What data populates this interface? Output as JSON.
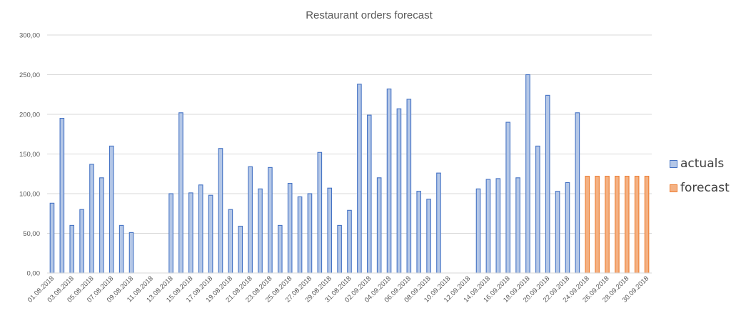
{
  "chart_data": {
    "type": "bar",
    "title": "Restaurant orders forecast",
    "xlabel": "",
    "ylabel": "",
    "ylim": [
      0,
      300
    ],
    "yticks": [
      "0,00",
      "50,00",
      "100,00",
      "150,00",
      "200,00",
      "250,00",
      "300,00"
    ],
    "grid": true,
    "legend_position": "right",
    "categories": [
      "01.08.2018",
      "02.08.2018",
      "03.08.2018",
      "04.08.2018",
      "05.08.2018",
      "06.08.2018",
      "07.08.2018",
      "08.08.2018",
      "09.08.2018",
      "10.08.2018",
      "11.08.2018",
      "12.08.2018",
      "13.08.2018",
      "14.08.2018",
      "15.08.2018",
      "16.08.2018",
      "17.08.2018",
      "18.08.2018",
      "19.08.2018",
      "20.08.2018",
      "21.08.2018",
      "22.08.2018",
      "23.08.2018",
      "24.08.2018",
      "25.08.2018",
      "26.08.2018",
      "27.08.2018",
      "28.08.2018",
      "29.08.2018",
      "30.08.2018",
      "31.08.2018",
      "01.09.2018",
      "02.09.2018",
      "03.09.2018",
      "04.09.2018",
      "05.09.2018",
      "06.09.2018",
      "07.09.2018",
      "08.09.2018",
      "09.09.2018",
      "10.09.2018",
      "11.09.2018",
      "12.09.2018",
      "13.09.2018",
      "14.09.2018",
      "15.09.2018",
      "16.09.2018",
      "17.09.2018",
      "18.09.2018",
      "19.09.2018",
      "20.09.2018",
      "21.09.2018",
      "22.09.2018",
      "23.09.2018",
      "24.09.2018",
      "25.09.2018",
      "26.09.2018",
      "27.09.2018",
      "28.09.2018",
      "29.09.2018",
      "30.09.2018"
    ],
    "tick_labels": [
      "01.08.2018",
      "03.08.2018",
      "05.08.2018",
      "07.08.2018",
      "09.08.2018",
      "11.08.2018",
      "13.08.2018",
      "15.08.2018",
      "17.08.2018",
      "19.08.2018",
      "21.08.2018",
      "23.08.2018",
      "25.08.2018",
      "27.08.2018",
      "29.08.2018",
      "31.08.2018",
      "02.09.2018",
      "04.09.2018",
      "06.09.2018",
      "08.09.2018",
      "10.09.2018",
      "12.09.2018",
      "14.09.2018",
      "16.09.2018",
      "18.09.2018",
      "20.09.2018",
      "22.09.2018",
      "24.09.2018",
      "26.09.2018",
      "28.09.2018",
      "30.09.2018"
    ],
    "series": [
      {
        "name": "actuals",
        "color": "#4472c4",
        "values": [
          88,
          195,
          60,
          80,
          137,
          120,
          160,
          60,
          51,
          null,
          null,
          null,
          100,
          202,
          101,
          111,
          98,
          157,
          80,
          59,
          134,
          106,
          133,
          60,
          113,
          96,
          100,
          152,
          107,
          60,
          79,
          238,
          199,
          120,
          232,
          207,
          219,
          103,
          93,
          126,
          null,
          null,
          null,
          106,
          118,
          119,
          190,
          120,
          250,
          160,
          224,
          103,
          114,
          202,
          null,
          null,
          null,
          null,
          null,
          null,
          null
        ]
      },
      {
        "name": "forecast",
        "color": "#ed7d31",
        "values": [
          null,
          null,
          null,
          null,
          null,
          null,
          null,
          null,
          null,
          null,
          null,
          null,
          null,
          null,
          null,
          null,
          null,
          null,
          null,
          null,
          null,
          null,
          null,
          null,
          null,
          null,
          null,
          null,
          null,
          null,
          null,
          null,
          null,
          null,
          null,
          null,
          null,
          null,
          null,
          null,
          null,
          null,
          null,
          null,
          null,
          null,
          null,
          null,
          null,
          null,
          null,
          null,
          null,
          null,
          122,
          122,
          122,
          122,
          122,
          122,
          122
        ]
      }
    ]
  }
}
